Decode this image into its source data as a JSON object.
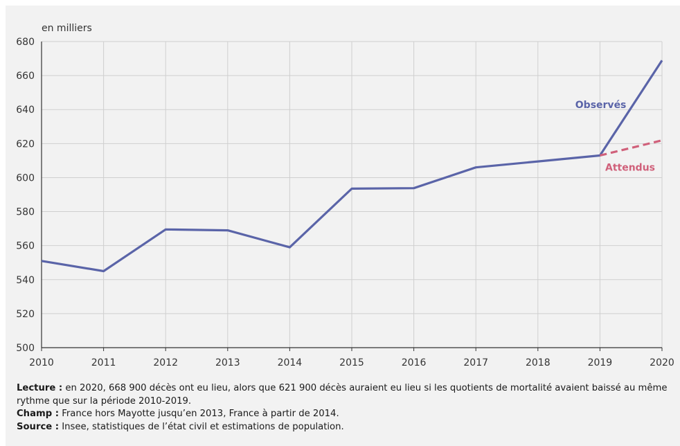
{
  "chart_data": {
    "type": "line",
    "unit_label": "en milliers",
    "x": [
      2010,
      2011,
      2012,
      2013,
      2014,
      2015,
      2016,
      2017,
      2018,
      2019,
      2020
    ],
    "ylim": [
      500,
      680
    ],
    "yticks": [
      500,
      520,
      540,
      560,
      580,
      600,
      620,
      640,
      660,
      680
    ],
    "grid": true,
    "series": [
      {
        "name": "Observés",
        "color": "#5a64a8",
        "style": "solid",
        "x": [
          2010,
          2011,
          2012,
          2013,
          2014,
          2015,
          2016,
          2017,
          2018,
          2019,
          2020
        ],
        "values": [
          551,
          545,
          569.5,
          569,
          559,
          593.5,
          593.8,
          606,
          609.5,
          613,
          668.9
        ]
      },
      {
        "name": "Attendus",
        "color": "#d0607a",
        "style": "dashed",
        "x": [
          2019,
          2020
        ],
        "values": [
          613,
          621.9
        ]
      }
    ]
  },
  "notes": {
    "lecture_label": "Lecture :",
    "lecture_text": "en 2020, 668 900 décès ont eu lieu, alors que 621 900 décès auraient eu lieu si les quotients de mortalité avaient baissé au même rythme que sur la période 2010-2019.",
    "champ_label": "Champ :",
    "champ_text": "France hors Mayotte jusqu’en 2013, France à partir de 2014.",
    "source_label": "Source :",
    "source_text": "Insee, statistiques de l’état civil et estimations de population."
  }
}
